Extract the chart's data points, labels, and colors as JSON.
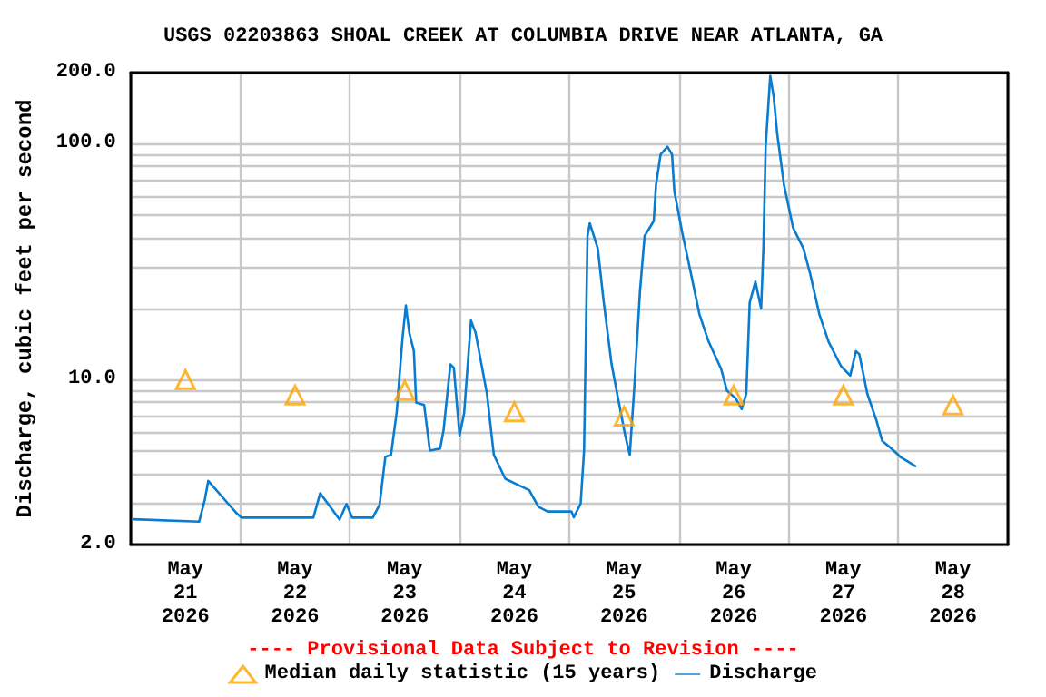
{
  "chart_data": {
    "type": "line",
    "title": "USGS 02203863 SHOAL CREEK AT COLUMBIA DRIVE NEAR ATLANTA, GA",
    "ylabel": "Discharge, cubic feet per second",
    "annotations": [
      "---- Provisional Data Subject to Revision ----"
    ],
    "log": "y",
    "grid": true,
    "legend": "bottom",
    "xlim": [
      "2026-05-21T00:00",
      "2026-05-29T00:00"
    ],
    "xticks": [
      {
        "value": "2026-05-21T00:00",
        "label": null
      },
      {
        "value": "2026-05-21T12:00",
        "label": "May\n21\n2026"
      },
      {
        "value": "2026-05-22T00:00",
        "label": null
      },
      {
        "value": "2026-05-22T12:00",
        "label": "May\n22\n2026"
      },
      {
        "value": "2026-05-23T00:00",
        "label": null
      },
      {
        "value": "2026-05-23T12:00",
        "label": "May\n23\n2026"
      },
      {
        "value": "2026-05-24T00:00",
        "label": null
      },
      {
        "value": "2026-05-24T12:00",
        "label": "May\n24\n2026"
      },
      {
        "value": "2026-05-25T00:00",
        "label": null
      },
      {
        "value": "2026-05-25T12:00",
        "label": "May\n25\n2026"
      },
      {
        "value": "2026-05-26T00:00",
        "label": null
      },
      {
        "value": "2026-05-26T12:00",
        "label": "May\n26\n2026"
      },
      {
        "value": "2026-05-27T00:00",
        "label": null
      },
      {
        "value": "2026-05-27T12:00",
        "label": "May\n27\n2026"
      },
      {
        "value": "2026-05-28T00:00",
        "label": null
      },
      {
        "value": "2026-05-28T12:00",
        "label": "May\n28\n2026"
      },
      {
        "value": "2026-05-29T00:00",
        "label": null
      }
    ],
    "ylim": [
      2,
      200
    ],
    "yticks": [
      {
        "value": 2,
        "label": "2.0"
      },
      {
        "value": 3,
        "label": null
      },
      {
        "value": 4,
        "label": null
      },
      {
        "value": 5,
        "label": null
      },
      {
        "value": 6,
        "label": null
      },
      {
        "value": 7,
        "label": null
      },
      {
        "value": 8,
        "label": null
      },
      {
        "value": 9,
        "label": null
      },
      {
        "value": 10,
        "label": "10.0"
      },
      {
        "value": 20,
        "label": null
      },
      {
        "value": 30,
        "label": null
      },
      {
        "value": 40,
        "label": null
      },
      {
        "value": 50,
        "label": null
      },
      {
        "value": 60,
        "label": null
      },
      {
        "value": 70,
        "label": null
      },
      {
        "value": 80,
        "label": null
      },
      {
        "value": 90,
        "label": null
      },
      {
        "value": 100,
        "label": "100.0"
      },
      {
        "value": 200,
        "label": "200.0"
      }
    ],
    "series": [
      {
        "name": "Median daily statistic (15 years)",
        "type": "scatter",
        "marker": "triangle",
        "color": "#ffa500",
        "x": [
          "2026-05-21T12:00",
          "2026-05-22T12:00",
          "2026-05-23T12:00",
          "2026-05-24T12:00",
          "2026-05-25T12:00",
          "2026-05-26T12:00",
          "2026-05-27T12:00",
          "2026-05-28T12:00"
        ],
        "values": [
          10,
          8.6,
          9.0,
          7.3,
          7.0,
          8.6,
          8.6,
          7.8
        ]
      },
      {
        "name": "Discharge",
        "marker": "none",
        "color": "#0a7ccf",
        "x": [
          "2026-05-21T00:30",
          "2026-05-21T15:00",
          "2026-05-21T16:15",
          "2026-05-21T17:00",
          "2026-05-21T23:00",
          "2026-05-22T00:15",
          "2026-05-22T16:00",
          "2026-05-22T17:30",
          "2026-05-22T21:45",
          "2026-05-22T23:15",
          "2026-05-23T00:30",
          "2026-05-23T05:00",
          "2026-05-23T06:30",
          "2026-05-23T07:45",
          "2026-05-23T09:00",
          "2026-05-23T10:15",
          "2026-05-23T11:30",
          "2026-05-23T12:15",
          "2026-05-23T13:00",
          "2026-05-23T14:00",
          "2026-05-23T14:30",
          "2026-05-23T16:15",
          "2026-05-23T17:30",
          "2026-05-23T19:45",
          "2026-05-23T20:30",
          "2026-05-23T22:00",
          "2026-05-23T22:45",
          "2026-05-24T00:00",
          "2026-05-24T01:00",
          "2026-05-24T02:30",
          "2026-05-24T03:30",
          "2026-05-24T06:00",
          "2026-05-24T07:30",
          "2026-05-24T10:00",
          "2026-05-24T12:30",
          "2026-05-24T15:15",
          "2026-05-24T17:15",
          "2026-05-24T19:15",
          "2026-05-25T00:30",
          "2026-05-25T01:00",
          "2026-05-25T02:30",
          "2026-05-25T03:15",
          "2026-05-25T04:00",
          "2026-05-25T04:30",
          "2026-05-25T06:15",
          "2026-05-25T07:30",
          "2026-05-25T09:15",
          "2026-05-25T10:30",
          "2026-05-25T12:15",
          "2026-05-25T13:15",
          "2026-05-25T14:15",
          "2026-05-25T15:30",
          "2026-05-25T16:30",
          "2026-05-25T18:30",
          "2026-05-25T19:00",
          "2026-05-25T20:00",
          "2026-05-25T21:30",
          "2026-05-25T22:30",
          "2026-05-25T23:00",
          "2026-05-26T00:45",
          "2026-05-26T02:30",
          "2026-05-26T04:30",
          "2026-05-26T06:30",
          "2026-05-26T09:15",
          "2026-05-26T10:30",
          "2026-05-26T12:30",
          "2026-05-26T13:45",
          "2026-05-26T14:45",
          "2026-05-26T15:30",
          "2026-05-26T16:45",
          "2026-05-26T18:00",
          "2026-05-26T18:30",
          "2026-05-26T19:00",
          "2026-05-26T20:00",
          "2026-05-26T20:45",
          "2026-05-26T21:30",
          "2026-05-26T23:00",
          "2026-05-27T01:00",
          "2026-05-27T03:15",
          "2026-05-27T04:45",
          "2026-05-27T06:45",
          "2026-05-27T08:45",
          "2026-05-27T11:30",
          "2026-05-27T13:30",
          "2026-05-27T14:45",
          "2026-05-27T15:30",
          "2026-05-27T17:15",
          "2026-05-27T19:15",
          "2026-05-27T20:30",
          "2026-05-27T22:30",
          "2026-05-28T00:30",
          "2026-05-28T03:45"
        ],
        "values": [
          2.56,
          2.5,
          3.1,
          3.72,
          2.74,
          2.6,
          2.6,
          3.3,
          2.55,
          2.97,
          2.6,
          2.6,
          2.95,
          4.7,
          4.8,
          7.3,
          14.9,
          20.6,
          15.8,
          13.2,
          8.0,
          7.8,
          5.0,
          5.1,
          6.1,
          11.6,
          11.2,
          5.8,
          7.2,
          17.8,
          15.8,
          8.7,
          4.8,
          3.8,
          3.6,
          3.4,
          2.89,
          2.76,
          2.76,
          2.61,
          2.98,
          5.0,
          40.6,
          46,
          36,
          21.8,
          11.7,
          8.7,
          5.8,
          4.8,
          9.3,
          23.9,
          40.6,
          47,
          67,
          90,
          97,
          90,
          63,
          41.8,
          29,
          18.9,
          14.5,
          11.1,
          9.0,
          8.3,
          7.5,
          8.7,
          21.2,
          26,
          20,
          36,
          98,
          194,
          158,
          111,
          67,
          44,
          36,
          28,
          18.9,
          14.5,
          11.4,
          10.4,
          13.2,
          12.8,
          8.7,
          6.7,
          5.5,
          5.1,
          4.7,
          4.3
        ]
      }
    ]
  }
}
